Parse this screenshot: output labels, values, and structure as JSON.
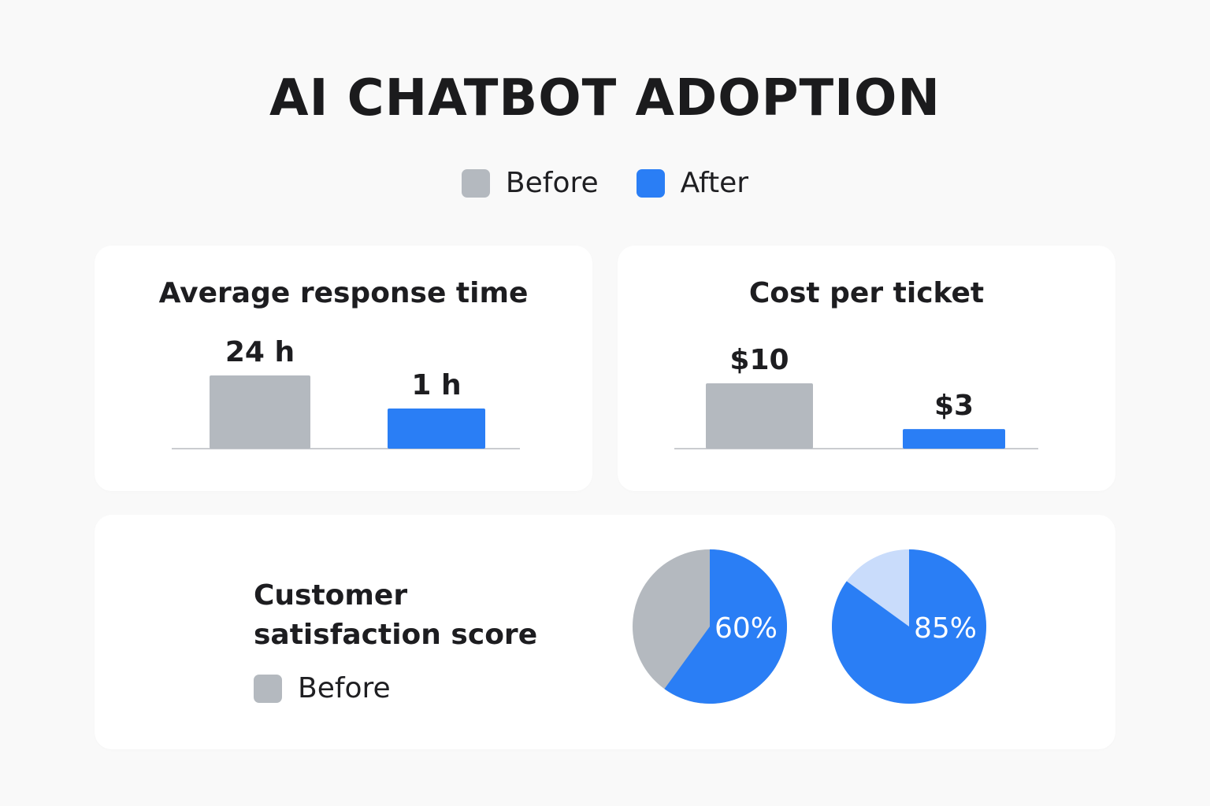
{
  "title": "AI CHATBOT ADOPTION",
  "legend": {
    "before_label": "Before",
    "after_label": "After"
  },
  "colors": {
    "before": "#b4b9bf",
    "after": "#2a7ef5",
    "after_light": "#c9dcfb",
    "baseline": "#b9bcc1"
  },
  "chart_data": [
    {
      "type": "bar",
      "title": "Average response time",
      "categories": [
        "Before",
        "After"
      ],
      "values": [
        24,
        1
      ],
      "value_labels": [
        "24 h",
        "1 h"
      ],
      "unit": "h"
    },
    {
      "type": "bar",
      "title": "Cost per ticket",
      "categories": [
        "Before",
        "After"
      ],
      "values": [
        10,
        3
      ],
      "value_labels": [
        "$10",
        "$3"
      ],
      "unit": "$"
    },
    {
      "type": "pie",
      "title": "Customer satisfaction score",
      "legend": [
        "Before"
      ],
      "pies": [
        {
          "value": 60,
          "label": "60%",
          "remainder_color": "#b4b9bf"
        },
        {
          "value": 85,
          "label": "85%",
          "remainder_color": "#c9dcfb"
        }
      ]
    }
  ]
}
